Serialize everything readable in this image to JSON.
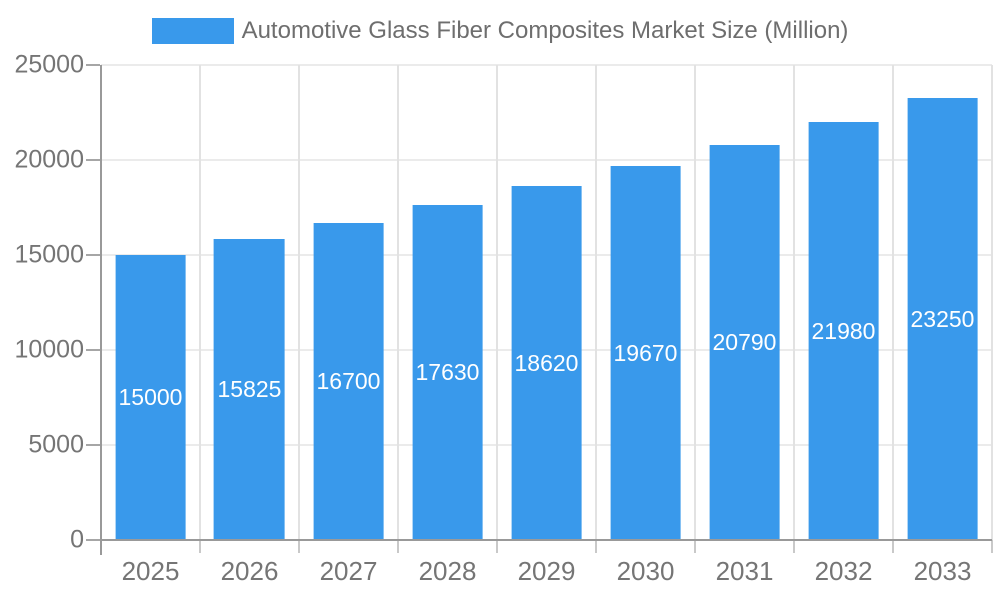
{
  "chart_data": {
    "type": "bar",
    "title": "Automotive Glass Fiber Composites Market Size (Million)",
    "categories": [
      "2025",
      "2026",
      "2027",
      "2028",
      "2029",
      "2030",
      "2031",
      "2032",
      "2033"
    ],
    "values": [
      15000,
      15825,
      16700,
      17630,
      18620,
      19670,
      20790,
      21980,
      23250
    ],
    "series": [
      {
        "name": "Automotive Glass Fiber Composites Market Size (Million)",
        "values": [
          15000,
          15825,
          16700,
          17630,
          18620,
          19670,
          20790,
          21980,
          23250
        ]
      }
    ],
    "xlabel": "",
    "ylabel": "",
    "ylim": [
      0,
      25000
    ],
    "yticks": [
      0,
      5000,
      10000,
      15000,
      20000,
      25000
    ],
    "grid": true,
    "legend_position": "top",
    "bar_color": "#3999EB",
    "value_label_color": "#FFFFFF",
    "value_labels_shown": true
  }
}
